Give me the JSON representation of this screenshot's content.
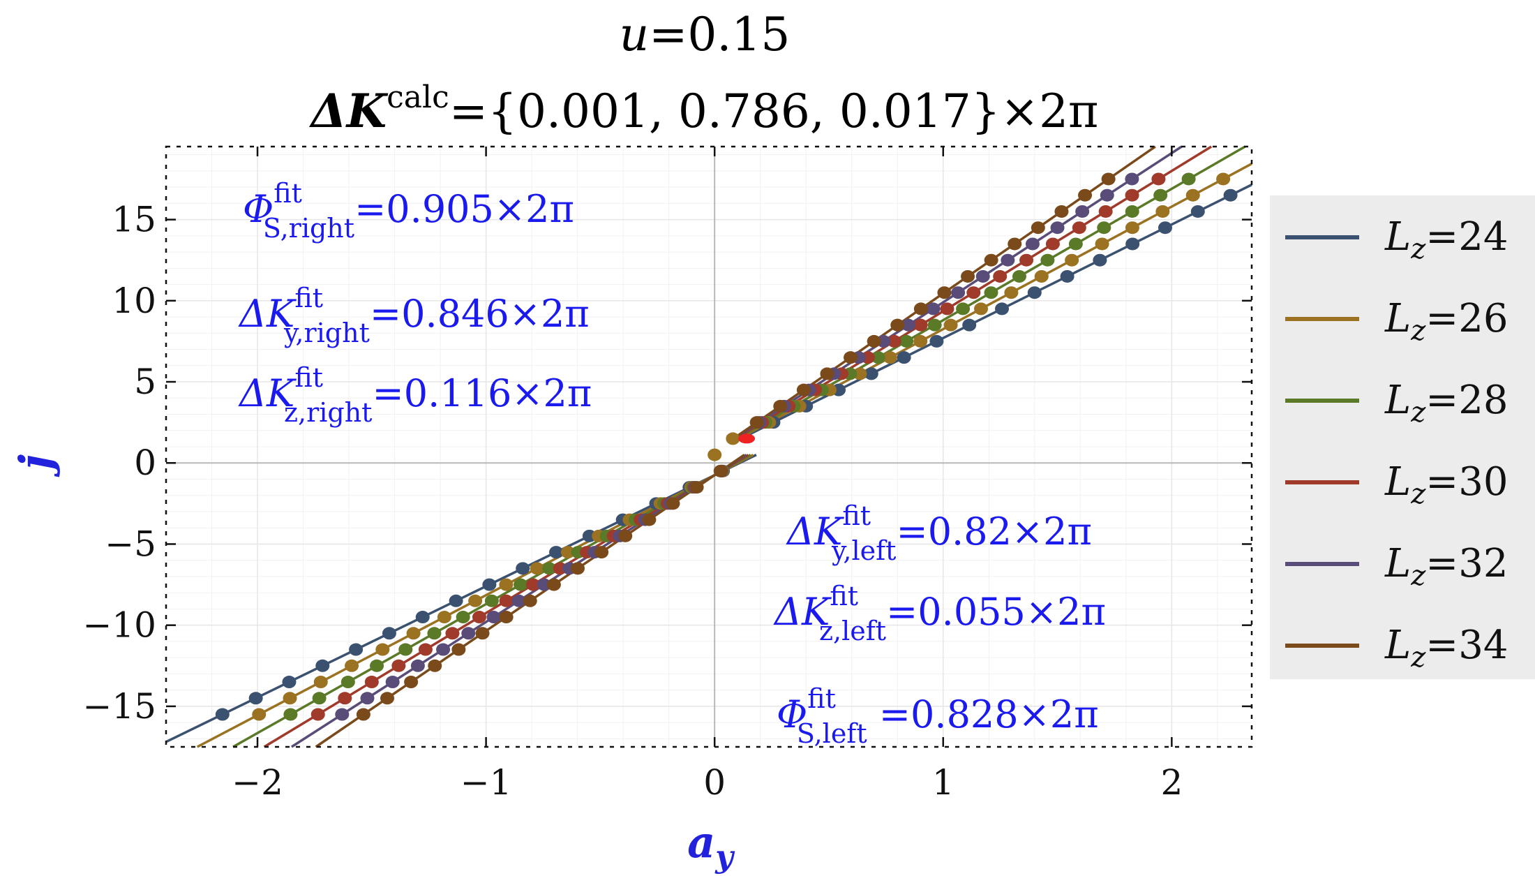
{
  "chart_data": {
    "type": "scatter",
    "title_line1": {
      "var": "u",
      "eq": "=0.15"
    },
    "title_line2": {
      "delta": "ΔK",
      "sup": "calc",
      "rest": "={0.001, 0.786, 0.017}×2π"
    },
    "xlabel": {
      "main": "a",
      "sub": "y"
    },
    "ylabel": "j",
    "xlim": [
      -2.4,
      2.35
    ],
    "ylim": [
      -17.5,
      19.5
    ],
    "xticks": [
      -2,
      -1,
      0,
      1,
      2
    ],
    "xtick_labels": [
      "−2",
      "−1",
      "0",
      "1",
      "2"
    ],
    "yticks": [
      -15,
      -10,
      -5,
      0,
      5,
      10,
      15
    ],
    "ytick_labels": [
      "−15",
      "−10",
      "−5",
      "0",
      "5",
      "10",
      "15"
    ],
    "grid": true,
    "series": [
      {
        "name": "L_z=24",
        "legend_main": "L",
        "legend_sub": "z",
        "legend_eq": "=24",
        "color": "#3b5170",
        "right_slope": 7.0,
        "right_intercept": 0.7,
        "left_slope": 6.85,
        "left_intercept": -0.75
      },
      {
        "name": "L_z=26",
        "legend_main": "L",
        "legend_sub": "z",
        "legend_eq": "=26",
        "color": "#9a7222",
        "right_slope": 7.55,
        "right_intercept": 0.7,
        "left_slope": 7.4,
        "left_intercept": -0.75
      },
      {
        "name": "L_z=28",
        "legend_main": "L",
        "legend_sub": "z",
        "legend_eq": "=28",
        "color": "#5a7a28",
        "right_slope": 8.1,
        "right_intercept": 0.7,
        "left_slope": 7.95,
        "left_intercept": -0.75
      },
      {
        "name": "L_z=30",
        "legend_main": "L",
        "legend_sub": "z",
        "legend_eq": "=30",
        "color": "#a03a2a",
        "right_slope": 8.65,
        "right_intercept": 0.7,
        "left_slope": 8.5,
        "left_intercept": -0.75
      },
      {
        "name": "L_z=32",
        "legend_main": "L",
        "legend_sub": "z",
        "legend_eq": "=32",
        "color": "#5a4c78",
        "right_slope": 9.2,
        "right_intercept": 0.7,
        "left_slope": 9.05,
        "left_intercept": -0.75
      },
      {
        "name": "L_z=34",
        "legend_main": "L",
        "legend_sub": "z",
        "legend_eq": "=34",
        "color": "#7a4a1a",
        "right_slope": 9.75,
        "right_intercept": 0.7,
        "left_slope": 9.6,
        "left_intercept": -0.75
      }
    ],
    "highlight_color": "#ee2222",
    "annotations": [
      {
        "id": "phi-right",
        "main": "Φ",
        "sup": "fit",
        "sub": "S,right",
        "eq": "=0.905×2π"
      },
      {
        "id": "dky-right",
        "main": "ΔK",
        "sup": "fit",
        "sub": "y,right",
        "eq": "=0.846×2π"
      },
      {
        "id": "dkz-right",
        "main": "ΔK",
        "sup": "fit",
        "sub": "z,right",
        "eq": "=0.116×2π"
      },
      {
        "id": "dky-left",
        "main": "ΔK",
        "sup": "fit",
        "sub": "y,left",
        "eq": "=0.82×2π"
      },
      {
        "id": "dkz-left",
        "main": "ΔK",
        "sup": "fit",
        "sub": "z,left",
        "eq": "=0.055×2π"
      },
      {
        "id": "phi-left",
        "main": "Φ",
        "sup": "fit",
        "sub": "S,left",
        "eq": " =0.828×2π"
      }
    ]
  }
}
